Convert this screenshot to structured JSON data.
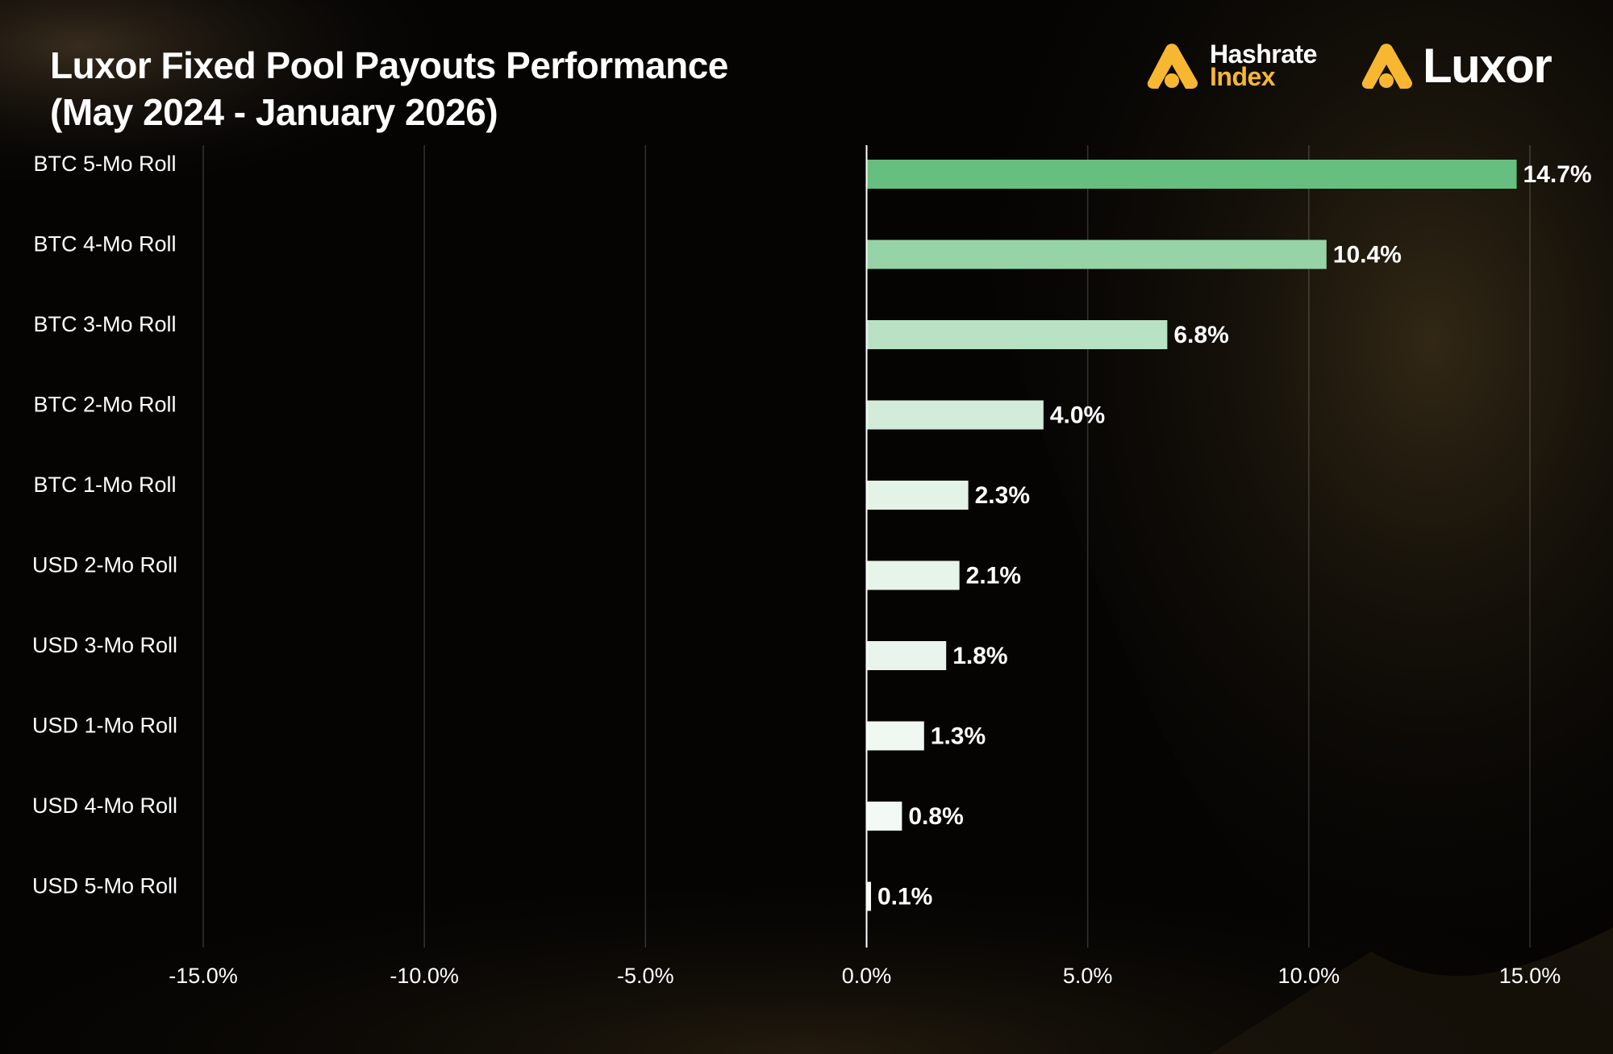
{
  "header": {
    "title_line1": "Luxor Fixed Pool Payouts Performance",
    "title_line2": "(May 2024  - January 2026)"
  },
  "logos": {
    "hashrate_line1": "Hashrate",
    "hashrate_line2": "Index",
    "luxor": "Luxor",
    "mark_icon": "luxor-triangle-icon",
    "accent_color": "#f7b731"
  },
  "chart_data": {
    "type": "bar",
    "orientation": "horizontal",
    "categories": [
      "BTC 5-Mo Roll",
      "BTC 4-Mo Roll",
      "BTC 3-Mo Roll",
      "BTC 2-Mo Roll",
      "BTC 1-Mo Roll",
      "USD 2-Mo Roll",
      "USD 3-Mo Roll",
      "USD 1-Mo Roll",
      "USD 4-Mo Roll",
      "USD 5-Mo Roll"
    ],
    "values": [
      14.7,
      10.4,
      6.8,
      4.0,
      2.3,
      2.1,
      1.8,
      1.3,
      0.8,
      0.1
    ],
    "value_labels": [
      "14.7%",
      "10.4%",
      "6.8%",
      "4.0%",
      "2.3%",
      "2.1%",
      "1.8%",
      "1.3%",
      "0.8%",
      "0.1%"
    ],
    "bar_colors": [
      "#66bf7e",
      "#96d3a6",
      "#b8e2c3",
      "#d2ecd9",
      "#e4f3e8",
      "#e6f4ea",
      "#e9f5ec",
      "#eff8f1",
      "#f3f9f4",
      "#f7fbf8"
    ],
    "xticks": [
      -15,
      -10,
      -5,
      0,
      5,
      10,
      15
    ],
    "xtick_labels": [
      "-15.0%",
      "-10.0%",
      "-5.0%",
      "0.0%",
      "5.0%",
      "10.0%",
      "15.0%"
    ],
    "xlim": [
      -15,
      15
    ],
    "grid": true,
    "xlabel": "",
    "ylabel": ""
  }
}
